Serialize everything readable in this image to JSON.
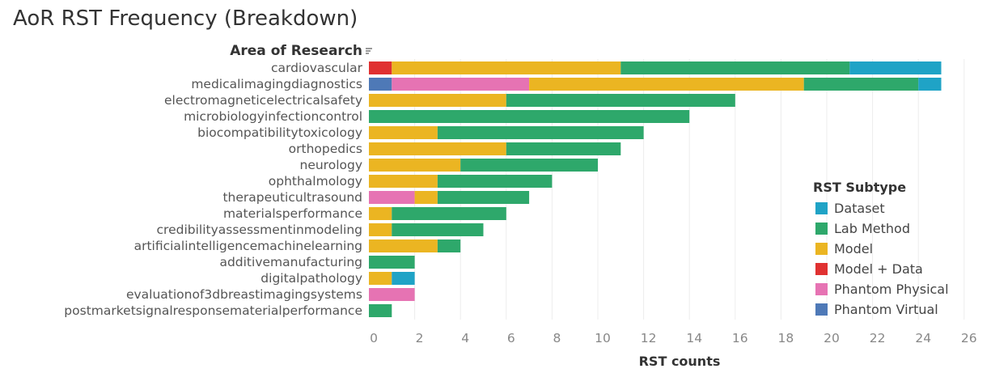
{
  "title": "AoR RST Frequency (Breakdown)",
  "chart_data": {
    "type": "bar",
    "orientation": "horizontal",
    "stacked": true,
    "title": "AoR RST Frequency (Breakdown)",
    "row_header": "Area of Research",
    "xlabel": "RST counts",
    "ylabel": "",
    "xlim": [
      0,
      26
    ],
    "xticks": [
      0,
      2,
      4,
      6,
      8,
      10,
      12,
      14,
      16,
      18,
      20,
      22,
      24,
      26
    ],
    "grid": true,
    "legend_title": "RST Subtype",
    "legend_position": "right",
    "categories": [
      "cardiovascular",
      "medicalimagingdiagnostics",
      "electromagneticelectricalsafety",
      "microbiologyinfectioncontrol",
      "biocompatibilitytoxicology",
      "orthopedics",
      "neurology",
      "ophthalmology",
      "therapeuticultrasound",
      "materialsperformance",
      "credibilityassessmentinmodeling",
      "artificialintelligencemachinelearning",
      "additivemanufacturing",
      "digitalpathology",
      "evaluationof3dbreastimagingsystems",
      "postmarketsignalresponsematerialperformance"
    ],
    "series": [
      {
        "name": "Model + Data",
        "color": "#e03131",
        "values": [
          1,
          0,
          0,
          0,
          0,
          0,
          0,
          0,
          0,
          0,
          0,
          0,
          0,
          0,
          0,
          0
        ]
      },
      {
        "name": "Phantom Virtual",
        "color": "#4e79b7",
        "values": [
          0,
          1,
          0,
          0,
          0,
          0,
          0,
          0,
          0,
          0,
          0,
          0,
          0,
          0,
          0,
          0
        ]
      },
      {
        "name": "Phantom Physical",
        "color": "#e673b3",
        "values": [
          0,
          6,
          0,
          0,
          0,
          0,
          0,
          0,
          2,
          0,
          0,
          0,
          0,
          0,
          2,
          0
        ]
      },
      {
        "name": "Model",
        "color": "#ebb522",
        "values": [
          10,
          12,
          6,
          0,
          3,
          6,
          4,
          3,
          1,
          1,
          1,
          3,
          0,
          1,
          0,
          0
        ]
      },
      {
        "name": "Lab Method",
        "color": "#2ea86b",
        "values": [
          10,
          5,
          10,
          14,
          9,
          5,
          6,
          5,
          4,
          5,
          4,
          1,
          2,
          0,
          0,
          1
        ]
      },
      {
        "name": "Dataset",
        "color": "#1fa3c6",
        "values": [
          4,
          1,
          0,
          0,
          0,
          0,
          0,
          0,
          0,
          0,
          0,
          0,
          0,
          1,
          0,
          0
        ]
      }
    ],
    "legend": [
      "Dataset",
      "Lab Method",
      "Model",
      "Model + Data",
      "Phantom Physical",
      "Phantom Virtual"
    ]
  }
}
